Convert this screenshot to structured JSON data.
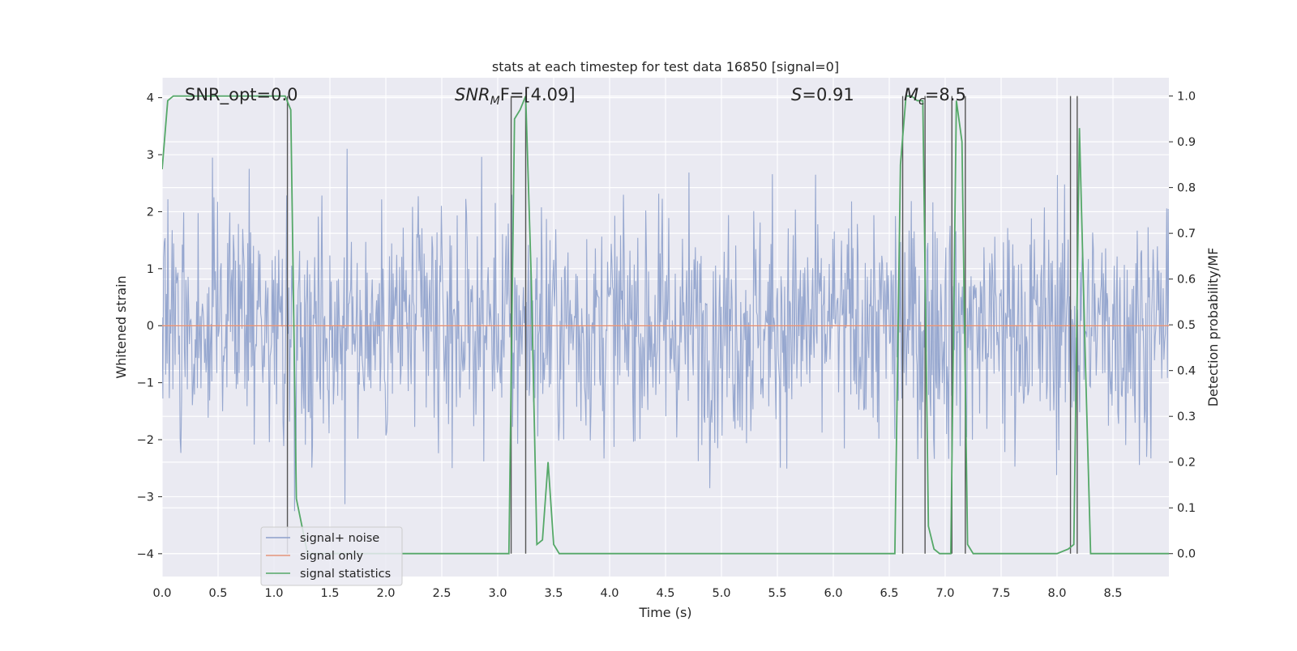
{
  "chart_data": {
    "type": "line",
    "title": "stats at each timestep for test data 16850 [signal=0]",
    "xlabel": "Time (s)",
    "ylabel_left": "Whitened strain",
    "ylabel_right": "Detection probability/MF",
    "xlim": [
      0.0,
      9.0
    ],
    "ylim_left": [
      -4.4,
      4.35
    ],
    "ylim_right": [
      -0.05,
      1.04
    ],
    "x_ticks": [
      "0.0",
      "0.5",
      "1.0",
      "1.5",
      "2.0",
      "2.5",
      "3.0",
      "3.5",
      "4.0",
      "4.5",
      "5.0",
      "5.5",
      "6.0",
      "6.5",
      "7.0",
      "7.5",
      "8.0",
      "8.5"
    ],
    "y_ticks_left": [
      "−4",
      "−3",
      "−2",
      "−1",
      "0",
      "1",
      "2",
      "3",
      "4"
    ],
    "y_ticks_right": [
      "0.0",
      "0.1",
      "0.2",
      "0.3",
      "0.4",
      "0.5",
      "0.6",
      "0.7",
      "0.8",
      "0.9",
      "1.0"
    ],
    "grid": true,
    "legend_position": "lower-left",
    "annotations": [
      "SNR_opt=0.0",
      "SNR",
      "M",
      "F=[4.09]",
      "S",
      "=0.91",
      "M",
      "c",
      "=8.5"
    ],
    "series": [
      {
        "name": "signal+ noise",
        "axis": "left",
        "color": "#8da0cb",
        "description_type": "noise",
        "envelope_approx": 2.5
      },
      {
        "name": "signal only",
        "axis": "left",
        "color": "#e5957a",
        "x": [
          0.0,
          9.0
        ],
        "y": [
          0.0,
          0.0
        ]
      },
      {
        "name": "signal statistics",
        "axis": "right",
        "color": "#55a868",
        "x": [
          0.0,
          0.05,
          0.1,
          0.5,
          1.0,
          1.1,
          1.15,
          1.2,
          1.3,
          1.5,
          2.0,
          3.0,
          3.1,
          3.15,
          3.2,
          3.25,
          3.3,
          3.35,
          3.4,
          3.45,
          3.5,
          3.55,
          3.6,
          4.0,
          5.0,
          6.0,
          6.55,
          6.6,
          6.65,
          6.7,
          6.75,
          6.8,
          6.85,
          6.9,
          6.95,
          7.0,
          7.05,
          7.1,
          7.15,
          7.2,
          7.25,
          7.3,
          7.5,
          8.0,
          8.1,
          8.15,
          8.2,
          8.25,
          8.3,
          8.5,
          9.0
        ],
        "y": [
          0.84,
          0.99,
          1.0,
          1.0,
          1.0,
          1.0,
          0.97,
          0.12,
          0.0,
          0.0,
          0.0,
          0.0,
          0.0,
          0.95,
          0.97,
          1.0,
          0.6,
          0.02,
          0.03,
          0.2,
          0.02,
          0.0,
          0.0,
          0.0,
          0.0,
          0.0,
          0.0,
          0.85,
          1.0,
          1.0,
          0.99,
          0.99,
          0.06,
          0.01,
          0.0,
          0.0,
          0.0,
          0.99,
          0.9,
          0.02,
          0.0,
          0.0,
          0.0,
          0.0,
          0.01,
          0.02,
          0.93,
          0.45,
          0.0,
          0.0,
          0.0
        ]
      }
    ],
    "vertical_lines_x": [
      1.12,
      3.12,
      3.25,
      6.62,
      6.82,
      7.06,
      7.18,
      8.12,
      8.18
    ],
    "colors": {
      "plot_bg": "#eaeaf2",
      "grid": "#ffffff",
      "vline": "#555555"
    }
  }
}
